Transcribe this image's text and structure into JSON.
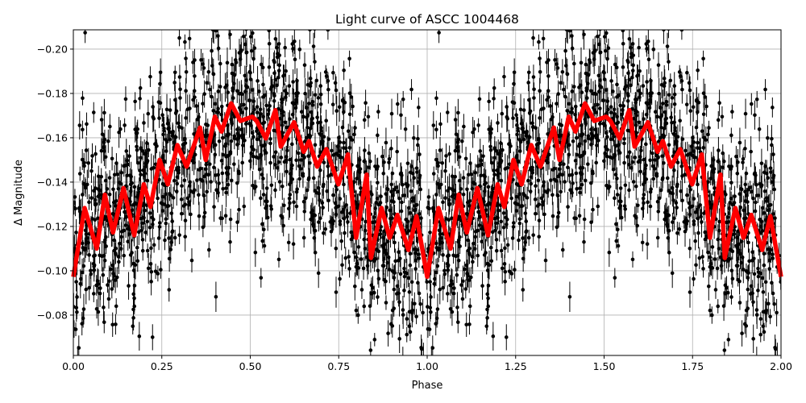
{
  "chart_data": {
    "type": "scatter",
    "title": "Light curve of ASCC 1004468",
    "xlabel": "Phase",
    "ylabel": "Δ Magnitude",
    "xlim": [
      0,
      2
    ],
    "ylim": [
      -0.2087,
      -0.0618
    ],
    "y_inverted": true,
    "grid": true,
    "xticks": [
      "0.00",
      "0.25",
      "0.50",
      "0.75",
      "1.00",
      "1.25",
      "1.50",
      "1.75",
      "2.00"
    ],
    "yticks": [
      "−0.20",
      "−0.18",
      "−0.16",
      "−0.14",
      "−0.12",
      "−0.10",
      "−0.08"
    ],
    "colors": {
      "points": "#000000",
      "model": "#ff0000",
      "grid": "#b0b0b0"
    },
    "model": {
      "phase": [
        0.0,
        0.032,
        0.066,
        0.089,
        0.112,
        0.142,
        0.172,
        0.199,
        0.218,
        0.244,
        0.267,
        0.294,
        0.32,
        0.358,
        0.374,
        0.4,
        0.419,
        0.446,
        0.472,
        0.506,
        0.518,
        0.544,
        0.571,
        0.586,
        0.624,
        0.651,
        0.666,
        0.689,
        0.715,
        0.749,
        0.776,
        0.799,
        0.829,
        0.841,
        0.871,
        0.894,
        0.916,
        0.947,
        0.97,
        1.0,
        1.032,
        1.066,
        1.089,
        1.112,
        1.142,
        1.172,
        1.199,
        1.218,
        1.244,
        1.267,
        1.294,
        1.32,
        1.358,
        1.374,
        1.4,
        1.419,
        1.446,
        1.472,
        1.506,
        1.518,
        1.544,
        1.571,
        1.586,
        1.624,
        1.651,
        1.666,
        1.689,
        1.715,
        1.749,
        1.776,
        1.799,
        1.829,
        1.841,
        1.871,
        1.894,
        1.916,
        1.947,
        1.97,
        2.0
      ],
      "mag": [
        -0.0973,
        -0.1283,
        -0.11,
        -0.1343,
        -0.1173,
        -0.1373,
        -0.116,
        -0.139,
        -0.1288,
        -0.15,
        -0.139,
        -0.1567,
        -0.147,
        -0.1646,
        -0.15,
        -0.1695,
        -0.1628,
        -0.1755,
        -0.1676,
        -0.1695,
        -0.1676,
        -0.1597,
        -0.1725,
        -0.156,
        -0.167,
        -0.1537,
        -0.1585,
        -0.147,
        -0.1549,
        -0.139,
        -0.1525,
        -0.1149,
        -0.1434,
        -0.1058,
        -0.1283,
        -0.1149,
        -0.1252,
        -0.1094,
        -0.1246,
        -0.0973,
        -0.1283,
        -0.11,
        -0.1343,
        -0.1173,
        -0.1373,
        -0.116,
        -0.139,
        -0.1288,
        -0.15,
        -0.139,
        -0.1567,
        -0.147,
        -0.1646,
        -0.15,
        -0.1695,
        -0.1628,
        -0.1755,
        -0.1676,
        -0.1695,
        -0.1676,
        -0.1597,
        -0.1725,
        -0.156,
        -0.167,
        -0.1537,
        -0.1585,
        -0.147,
        -0.1549,
        -0.139,
        -0.1525,
        -0.1149,
        -0.1434,
        -0.1058,
        -0.1283,
        -0.1149,
        -0.1252,
        -0.1094,
        -0.1246,
        -0.0973
      ]
    }
  }
}
